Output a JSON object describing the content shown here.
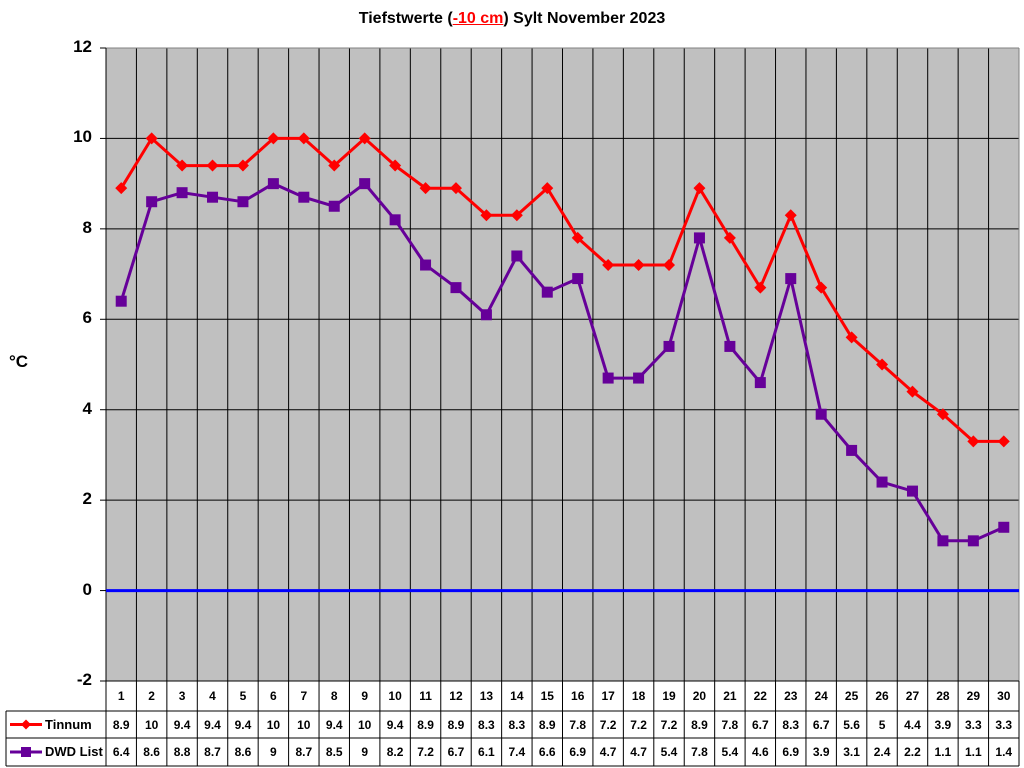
{
  "title": {
    "prefix": "Tiefstwerte (",
    "highlight": "-10 cm",
    "suffix": ") Sylt November 2023"
  },
  "chart_data": {
    "type": "line",
    "title": "Tiefstwerte (-10 cm) Sylt November 2023",
    "xlabel": "",
    "ylabel": "°C",
    "ylim": [
      -2,
      12
    ],
    "yticks": [
      12,
      10,
      8,
      6,
      4,
      2,
      0,
      -2
    ],
    "grid": true,
    "legend_position": "data-table-left",
    "categories": [
      "1",
      "2",
      "3",
      "4",
      "5",
      "6",
      "7",
      "8",
      "9",
      "10",
      "11",
      "12",
      "13",
      "14",
      "15",
      "16",
      "17",
      "18",
      "19",
      "20",
      "21",
      "22",
      "23",
      "24",
      "25",
      "26",
      "27",
      "28",
      "29",
      "30"
    ],
    "series": [
      {
        "name": "Tinnum",
        "color": "#ff0000",
        "marker": "diamond",
        "values": [
          8.9,
          10,
          9.4,
          9.4,
          9.4,
          10,
          10,
          9.4,
          10,
          9.4,
          8.9,
          8.9,
          8.3,
          8.3,
          8.9,
          7.8,
          7.2,
          7.2,
          7.2,
          8.9,
          7.8,
          6.7,
          8.3,
          6.7,
          5.6,
          5,
          4.4,
          3.9,
          3.3,
          3.3
        ]
      },
      {
        "name": "DWD List",
        "color": "#660099",
        "marker": "square",
        "values": [
          6.4,
          8.6,
          8.8,
          8.7,
          8.6,
          9,
          8.7,
          8.5,
          9,
          8.2,
          7.2,
          6.7,
          6.1,
          7.4,
          6.6,
          6.9,
          4.7,
          4.7,
          5.4,
          7.8,
          5.4,
          4.6,
          6.9,
          3.9,
          3.1,
          2.4,
          2.2,
          1.1,
          1.1,
          1.4
        ]
      }
    ],
    "reference_line": {
      "y": 0,
      "color": "#0000ff"
    },
    "plot_background": "#c0c0c0"
  }
}
